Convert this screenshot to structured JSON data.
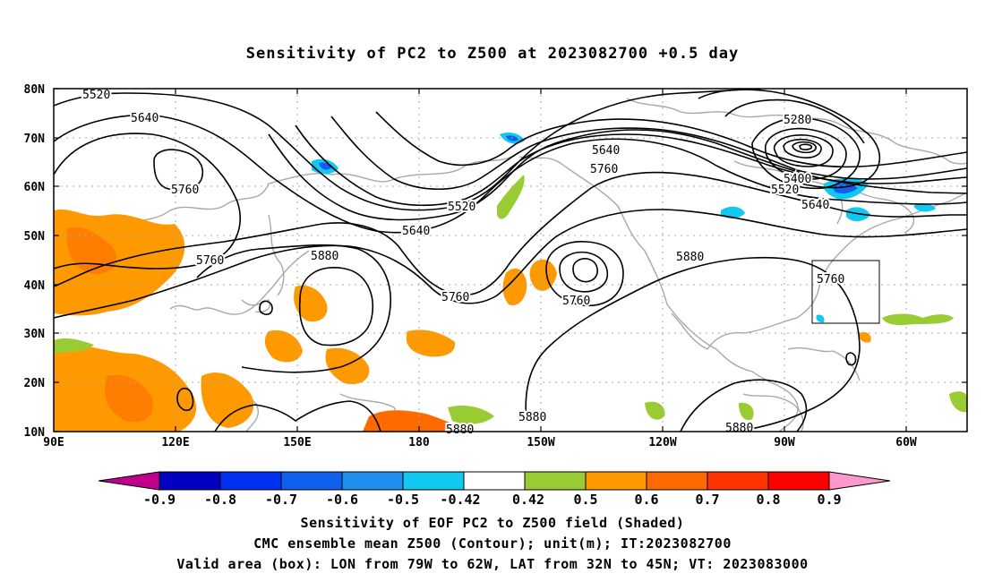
{
  "title": "Sensitivity of PC2 to Z500 at 2023082700 +0.5 day",
  "lat_labels": [
    "80N",
    "70N",
    "60N",
    "50N",
    "40N",
    "30N",
    "20N",
    "10N"
  ],
  "lon_labels": [
    "90E",
    "120E",
    "150E",
    "180",
    "150W",
    "120W",
    "90W",
    "60W"
  ],
  "contour_labels": [
    "5520",
    "5640",
    "5760",
    "5520",
    "5640",
    "5760",
    "5880",
    "5760",
    "5640",
    "5760",
    "5760",
    "5880",
    "5280",
    "5400",
    "5520",
    "5640",
    "5760",
    "5880",
    "5880",
    "5880"
  ],
  "colorbar": {
    "labels": [
      "-0.9",
      "-0.8",
      "-0.7",
      "-0.6",
      "-0.5",
      "-0.42",
      "0.42",
      "0.5",
      "0.6",
      "0.7",
      "0.8",
      "0.9"
    ],
    "colors": [
      "#c0008c",
      "#0000c0",
      "#0030f0",
      "#1060f0",
      "#2090f0",
      "#10c8f0",
      "#ffffff",
      "#99cc33",
      "#ff9900",
      "#ff6a00",
      "#ff3300",
      "#ff0000",
      "#ff99cc"
    ]
  },
  "valid_box": {
    "lon": [
      "79W",
      "62W"
    ],
    "lat": [
      "32N",
      "45N"
    ]
  },
  "captions": [
    "Sensitivity of EOF PC2 to Z500 field (Shaded)",
    "CMC ensemble mean Z500 (Contour); unit(m); IT:2023082700",
    "Valid area (box): LON from 79W to 62W, LAT from 32N to 45N; VT: 2023083000"
  ]
}
